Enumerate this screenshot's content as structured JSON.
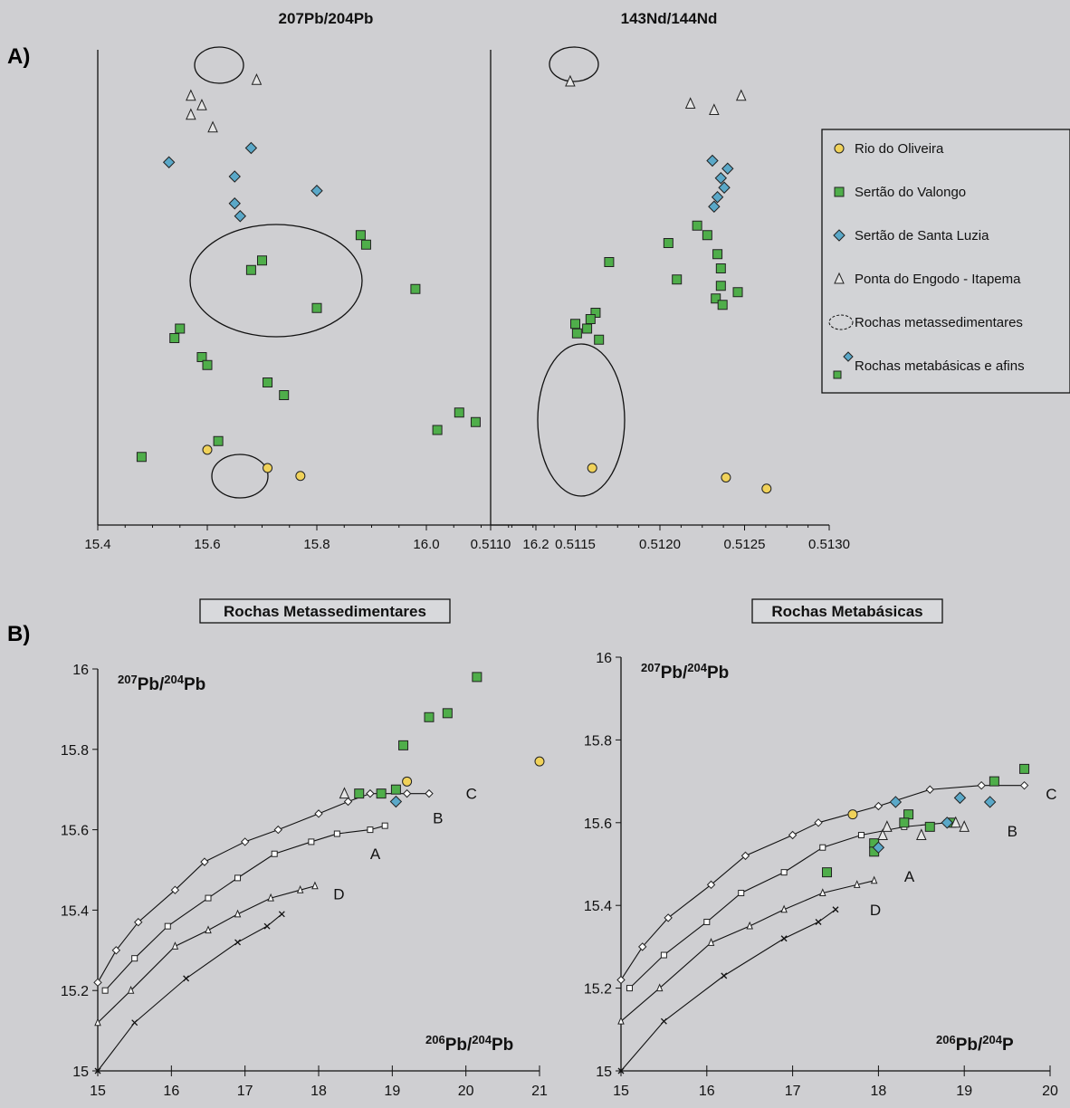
{
  "panel_labels": {
    "a": "A)",
    "b": "B)"
  },
  "colors": {
    "background": "#cfcfd2",
    "rio_do_oliveira": "#f0d25a",
    "sertao_do_valongo": "#4fae4a",
    "sertao_santa_luzia": "#5aa8c8",
    "ponta_do_engodo": "#e6e6e6",
    "axis": "#111111"
  },
  "legend": {
    "items": [
      {
        "label": "Rio do Oliveira",
        "symbol": "circle",
        "color": "#f0d25a"
      },
      {
        "label": "Sertão do Valongo",
        "symbol": "square",
        "color": "#4fae4a"
      },
      {
        "label": "Sertão de Santa Luzia",
        "symbol": "diamond",
        "color": "#5aa8c8"
      },
      {
        "label": "Ponta do Engodo - Itapema",
        "symbol": "triangle",
        "color": "#e6e6e6"
      },
      {
        "label": "Rochas metassedimentares",
        "symbol": "ellipse",
        "color": "none"
      },
      {
        "label": "Rochas metabásicas e afins",
        "symbol": "diamond-square",
        "color": "#5aa8c8"
      }
    ]
  },
  "chart_data": [
    {
      "type": "scatter",
      "title": "207Pb/204Pb",
      "xlim": [
        15.4,
        16.2
      ],
      "xticks": [
        "15.4",
        "15.6",
        "15.8",
        "16.0",
        "16.2"
      ],
      "series": [
        {
          "name": "Rio do Oliveira",
          "symbol": "circle",
          "points": [
            [
              15.6,
              47.5
            ],
            [
              15.71,
              36
            ],
            [
              15.77,
              31
            ]
          ]
        },
        {
          "name": "Sertão do Valongo",
          "symbol": "square",
          "points": [
            [
              15.88,
              183
            ],
            [
              15.89,
              177
            ],
            [
              15.7,
              167
            ],
            [
              15.68,
              161
            ],
            [
              15.98,
              149
            ],
            [
              15.8,
              137
            ],
            [
              15.55,
              124
            ],
            [
              15.54,
              118
            ],
            [
              15.59,
              106
            ],
            [
              15.6,
              101
            ],
            [
              15.71,
              90
            ],
            [
              15.74,
              82
            ],
            [
              16.06,
              71
            ],
            [
              16.09,
              65
            ],
            [
              16.02,
              60
            ],
            [
              15.62,
              53
            ],
            [
              15.48,
              43
            ]
          ]
        },
        {
          "name": "Sertão de Santa Luzia",
          "symbol": "diamond",
          "points": [
            [
              15.68,
              238
            ],
            [
              15.53,
              229
            ],
            [
              15.65,
              220
            ],
            [
              15.8,
              211
            ],
            [
              15.65,
              203
            ],
            [
              15.66,
              195
            ]
          ]
        },
        {
          "name": "Ponta do Engodo - Itapema",
          "symbol": "triangle",
          "points": [
            [
              15.69,
              281
            ],
            [
              15.57,
              271
            ],
            [
              15.59,
              265
            ],
            [
              15.57,
              259
            ],
            [
              15.61,
              251
            ]
          ]
        }
      ],
      "groups": [
        "ellipse-top",
        "ellipse-middle",
        "ellipse-bottom"
      ]
    },
    {
      "type": "scatter",
      "title": "143Nd/144Nd",
      "xlim": [
        0.511,
        0.513
      ],
      "xticks": [
        "0.5110",
        "0.5115",
        "0.5120",
        "0.5125",
        "0.5130"
      ],
      "series": [
        {
          "name": "Rio do Oliveira",
          "symbol": "circle",
          "points": [
            [
              0.5116,
              36
            ],
            [
              0.51239,
              30
            ],
            [
              0.51263,
              23
            ]
          ]
        },
        {
          "name": "Sertão do Valongo",
          "symbol": "square",
          "points": [
            [
              0.51222,
              189
            ],
            [
              0.51228,
              183
            ],
            [
              0.51205,
              178
            ],
            [
              0.51234,
              171
            ],
            [
              0.5117,
              166
            ],
            [
              0.51236,
              162
            ],
            [
              0.5121,
              155
            ],
            [
              0.51236,
              151
            ],
            [
              0.51246,
              147
            ],
            [
              0.51233,
              143
            ],
            [
              0.51237,
              139
            ],
            [
              0.51162,
              134
            ],
            [
              0.51159,
              130
            ],
            [
              0.5115,
              127
            ],
            [
              0.51157,
              124
            ],
            [
              0.51151,
              121
            ],
            [
              0.51164,
              117
            ]
          ]
        },
        {
          "name": "Sertão de Santa Luzia",
          "symbol": "diamond",
          "points": [
            [
              0.51231,
              230
            ],
            [
              0.5124,
              225
            ],
            [
              0.51236,
              219
            ],
            [
              0.51238,
              213
            ],
            [
              0.51234,
              207
            ],
            [
              0.51232,
              201
            ]
          ]
        },
        {
          "name": "Ponta do Engodo - Itapema",
          "symbol": "triangle",
          "points": [
            [
              0.51147,
              280
            ],
            [
              0.51218,
              266
            ],
            [
              0.51248,
              271
            ],
            [
              0.51232,
              262
            ]
          ]
        }
      ],
      "groups": [
        "ellipse-top",
        "ellipse-bottom"
      ]
    },
    {
      "type": "line",
      "title": "Rochas Metassedimentares",
      "ylabel_html": "207Pb/204Pb",
      "xlabel_html": "206Pb/204Pb",
      "xlim": [
        15,
        21
      ],
      "ylim": [
        15,
        16
      ],
      "xticks": [
        "15",
        "16",
        "17",
        "18",
        "19",
        "20",
        "21"
      ],
      "yticks": [
        "15",
        "15.2",
        "15.4",
        "15.6",
        "15.8",
        "16"
      ],
      "growth_curves": [
        {
          "name": "C",
          "marker": "diamond",
          "points": [
            [
              15.0,
              15.22
            ],
            [
              15.25,
              15.3
            ],
            [
              15.55,
              15.37
            ],
            [
              16.05,
              15.45
            ],
            [
              16.45,
              15.52
            ],
            [
              17.0,
              15.57
            ],
            [
              17.45,
              15.6
            ],
            [
              18.0,
              15.64
            ],
            [
              18.4,
              15.67
            ],
            [
              18.7,
              15.69
            ],
            [
              19.2,
              15.69
            ],
            [
              19.5,
              15.69
            ]
          ]
        },
        {
          "name": "B",
          "marker": "square",
          "points": [
            [
              15.1,
              15.2
            ],
            [
              15.5,
              15.28
            ],
            [
              15.95,
              15.36
            ],
            [
              16.5,
              15.43
            ],
            [
              16.9,
              15.48
            ],
            [
              17.4,
              15.54
            ],
            [
              17.9,
              15.57
            ],
            [
              18.25,
              15.59
            ],
            [
              18.7,
              15.6
            ],
            [
              18.9,
              15.61
            ]
          ]
        },
        {
          "name": "D",
          "marker": "triangle",
          "points": [
            [
              15.0,
              15.12
            ],
            [
              15.45,
              15.2
            ],
            [
              16.05,
              15.31
            ],
            [
              16.5,
              15.35
            ],
            [
              16.9,
              15.39
            ],
            [
              17.35,
              15.43
            ],
            [
              17.75,
              15.45
            ],
            [
              17.95,
              15.46
            ]
          ]
        },
        {
          "name": "A",
          "marker": "cross",
          "points": [
            [
              15.0,
              15.0
            ],
            [
              15.5,
              15.12
            ],
            [
              16.2,
              15.23
            ],
            [
              16.9,
              15.32
            ],
            [
              17.3,
              15.36
            ],
            [
              17.5,
              15.39
            ]
          ]
        }
      ],
      "curve_labels": [
        {
          "text": "C",
          "x": 20.0,
          "y": 15.69
        },
        {
          "text": "B",
          "x": 19.55,
          "y": 15.63
        },
        {
          "text": "A",
          "x": 18.7,
          "y": 15.54
        },
        {
          "text": "D",
          "x": 18.2,
          "y": 15.44
        }
      ],
      "series": [
        {
          "name": "Sertão do Valongo",
          "symbol": "square",
          "points": [
            [
              20.15,
              15.98
            ],
            [
              19.75,
              15.89
            ],
            [
              19.5,
              15.88
            ],
            [
              19.15,
              15.81
            ],
            [
              19.05,
              15.7
            ],
            [
              18.85,
              15.69
            ],
            [
              18.55,
              15.69
            ]
          ]
        },
        {
          "name": "Rio do Oliveira",
          "symbol": "circle",
          "points": [
            [
              19.2,
              15.72
            ],
            [
              21.0,
              15.77
            ]
          ]
        },
        {
          "name": "Sertão de Santa Luzia",
          "symbol": "diamond",
          "points": [
            [
              19.05,
              15.67
            ]
          ]
        },
        {
          "name": "Ponta do Engodo - Itapema",
          "symbol": "triangle",
          "points": [
            [
              18.35,
              15.69
            ]
          ]
        }
      ]
    },
    {
      "type": "line",
      "title": "Rochas Metabásicas",
      "ylabel_html": "207Pb/204Pb",
      "xlabel_html": "206Pb/204P",
      "xlim": [
        15,
        20
      ],
      "ylim": [
        15,
        16
      ],
      "xticks": [
        "15",
        "16",
        "17",
        "18",
        "19",
        "20"
      ],
      "yticks": [
        "15",
        "15.2",
        "15.4",
        "15.6",
        "15.8",
        "16"
      ],
      "growth_curves": [
        {
          "name": "C",
          "marker": "diamond",
          "points": [
            [
              15.0,
              15.22
            ],
            [
              15.25,
              15.3
            ],
            [
              15.55,
              15.37
            ],
            [
              16.05,
              15.45
            ],
            [
              16.45,
              15.52
            ],
            [
              17.0,
              15.57
            ],
            [
              17.3,
              15.6
            ],
            [
              18.0,
              15.64
            ],
            [
              18.6,
              15.68
            ],
            [
              19.2,
              15.69
            ],
            [
              19.7,
              15.69
            ]
          ]
        },
        {
          "name": "B",
          "marker": "square",
          "points": [
            [
              15.1,
              15.2
            ],
            [
              15.5,
              15.28
            ],
            [
              16.0,
              15.36
            ],
            [
              16.4,
              15.43
            ],
            [
              16.9,
              15.48
            ],
            [
              17.35,
              15.54
            ],
            [
              17.8,
              15.57
            ],
            [
              18.3,
              15.59
            ],
            [
              18.8,
              15.6
            ]
          ]
        },
        {
          "name": "D",
          "marker": "triangle",
          "points": [
            [
              15.0,
              15.12
            ],
            [
              15.45,
              15.2
            ],
            [
              16.05,
              15.31
            ],
            [
              16.5,
              15.35
            ],
            [
              16.9,
              15.39
            ],
            [
              17.35,
              15.43
            ],
            [
              17.75,
              15.45
            ],
            [
              17.95,
              15.46
            ]
          ]
        },
        {
          "name": "A",
          "marker": "cross",
          "points": [
            [
              15.0,
              15.0
            ],
            [
              15.5,
              15.12
            ],
            [
              16.2,
              15.23
            ],
            [
              16.9,
              15.32
            ],
            [
              17.3,
              15.36
            ],
            [
              17.5,
              15.39
            ]
          ]
        }
      ],
      "curve_labels": [
        {
          "text": "C",
          "x": 19.95,
          "y": 15.67
        },
        {
          "text": "B",
          "x": 19.5,
          "y": 15.58
        },
        {
          "text": "A",
          "x": 18.3,
          "y": 15.47
        },
        {
          "text": "D",
          "x": 17.9,
          "y": 15.39
        }
      ],
      "series": [
        {
          "name": "Sertão do Valongo",
          "symbol": "square",
          "points": [
            [
              19.7,
              15.73
            ],
            [
              19.35,
              15.7
            ],
            [
              18.35,
              15.62
            ],
            [
              18.3,
              15.6
            ],
            [
              18.6,
              15.59
            ],
            [
              18.85,
              15.6
            ],
            [
              17.95,
              15.55
            ],
            [
              17.95,
              15.53
            ],
            [
              17.4,
              15.48
            ]
          ]
        },
        {
          "name": "Rio do Oliveira",
          "symbol": "circle",
          "points": [
            [
              17.7,
              15.62
            ]
          ]
        },
        {
          "name": "Sertão de Santa Luzia",
          "symbol": "diamond",
          "points": [
            [
              18.0,
              15.54
            ],
            [
              18.2,
              15.65
            ],
            [
              18.95,
              15.66
            ],
            [
              19.3,
              15.65
            ],
            [
              18.8,
              15.6
            ]
          ]
        },
        {
          "name": "Ponta do Engodo - Itapema",
          "symbol": "triangle",
          "points": [
            [
              18.05,
              15.57
            ],
            [
              18.1,
              15.59
            ],
            [
              18.5,
              15.57
            ],
            [
              18.9,
              15.6
            ],
            [
              19.0,
              15.59
            ]
          ]
        }
      ]
    }
  ]
}
